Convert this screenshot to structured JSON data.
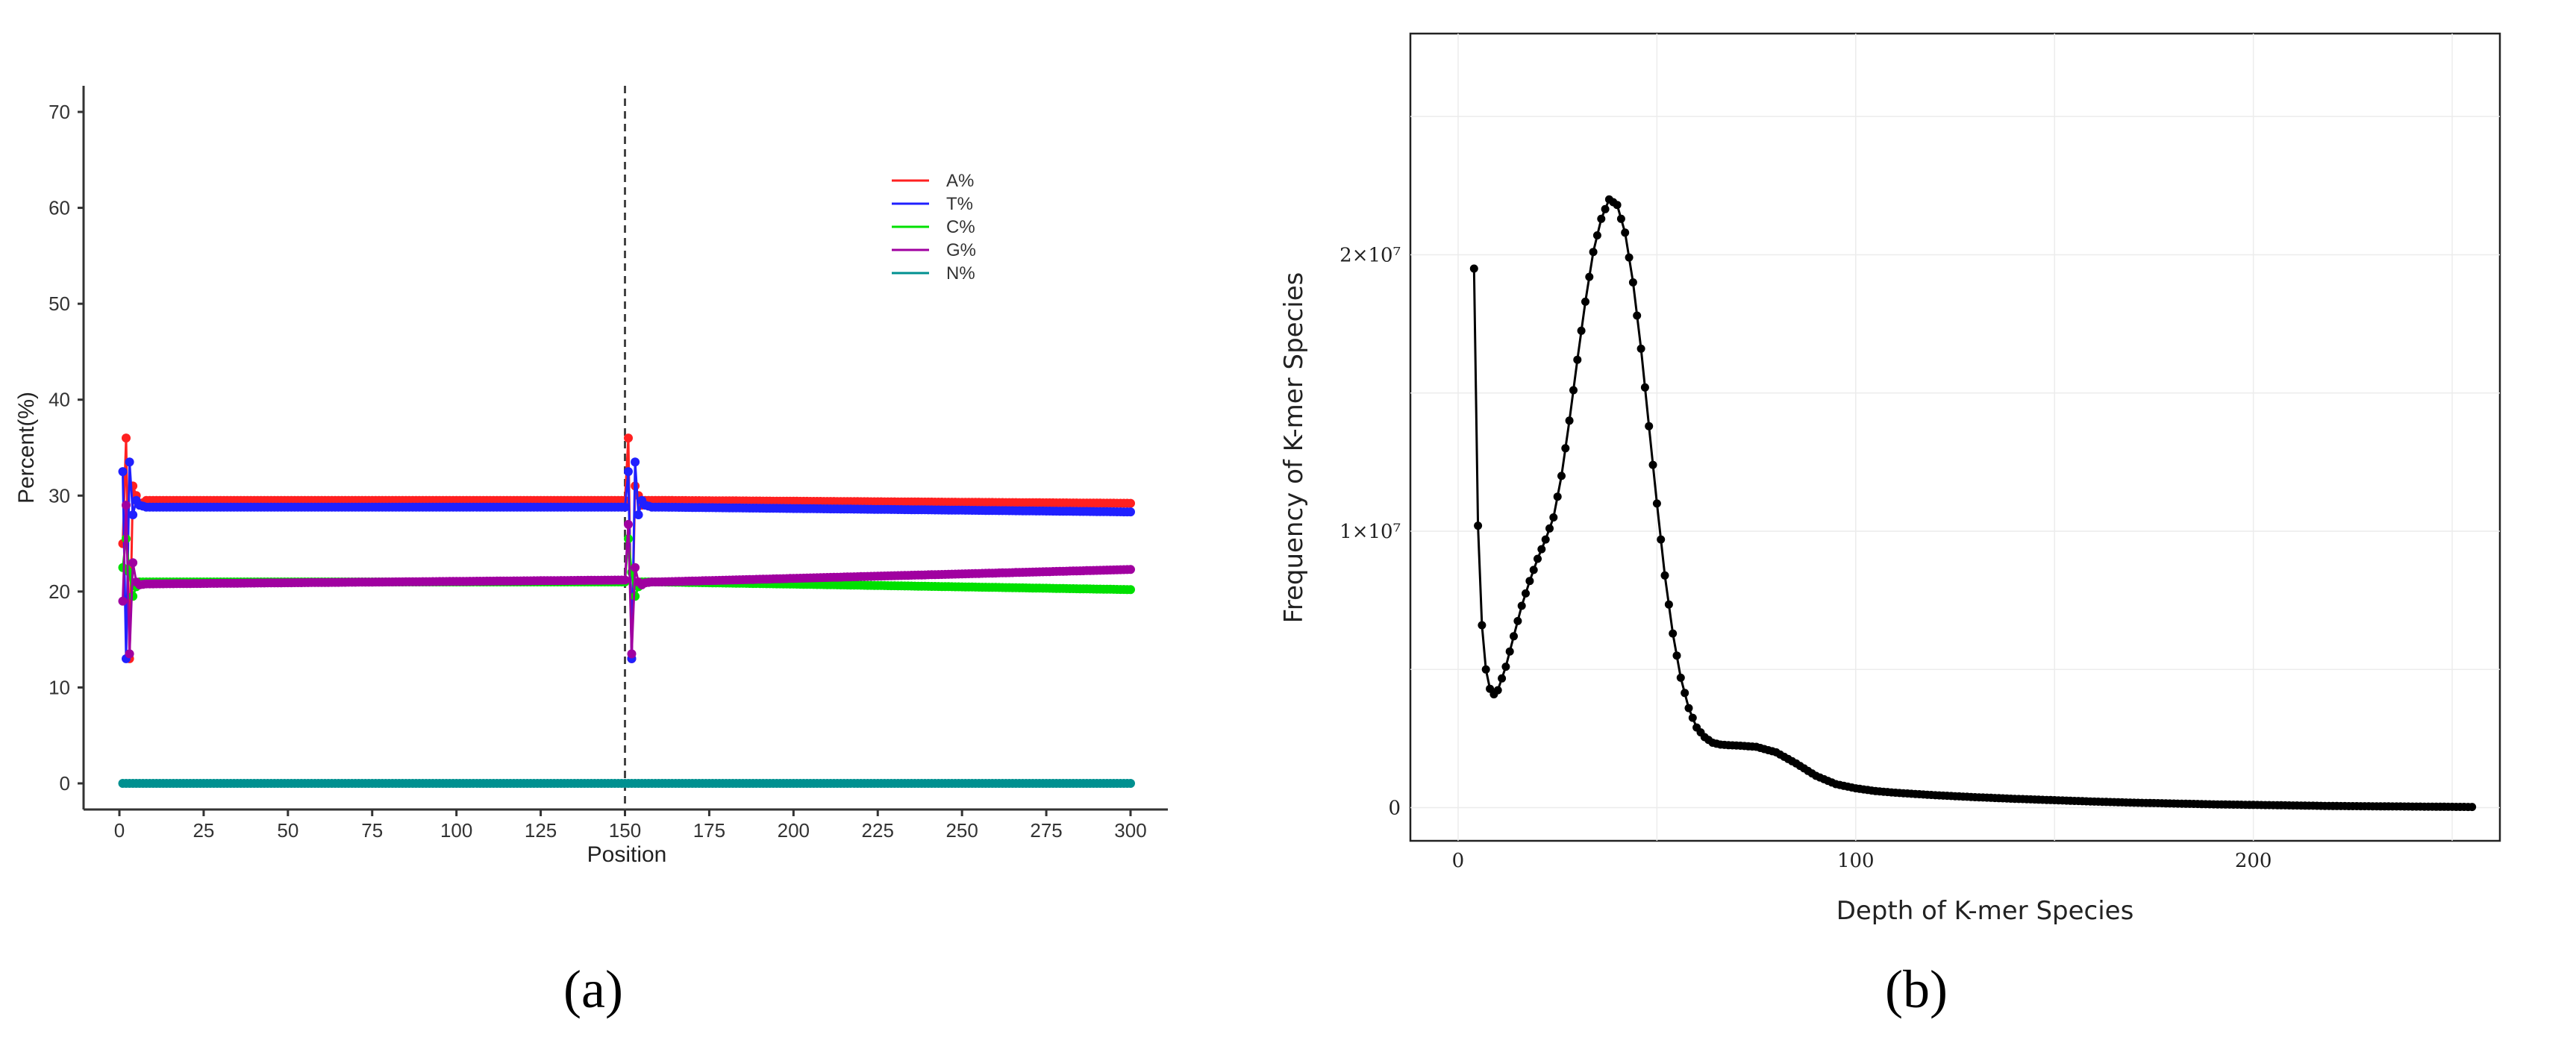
{
  "chart_data": [
    {
      "type": "line",
      "panel_label": "(a)",
      "xlabel": "Position",
      "ylabel": "Percent(%)",
      "xlim": [
        0,
        300
      ],
      "ylim": [
        0,
        70
      ],
      "x_ticks": [
        "0",
        "25",
        "50",
        "75",
        "100",
        "125",
        "150",
        "175",
        "200",
        "225",
        "250",
        "275",
        "300"
      ],
      "y_ticks": [
        "0",
        "10",
        "20",
        "30",
        "40",
        "50",
        "60",
        "70"
      ],
      "vline_x": 150,
      "grid": false,
      "legend_position": "top-right",
      "series": [
        {
          "name": "A%",
          "color": "#ff2020",
          "x": [
            1,
            2,
            3,
            4,
            5,
            6,
            8,
            10,
            150,
            151,
            152,
            153,
            154,
            155,
            156,
            158,
            160,
            300
          ],
          "y": [
            25,
            36,
            13,
            31,
            30,
            29,
            29.5,
            29.5,
            29.5,
            36,
            13,
            31,
            30,
            29,
            29.5,
            29.5,
            29.5,
            29.2
          ]
        },
        {
          "name": "T%",
          "color": "#2020ff",
          "x": [
            1,
            2,
            3,
            4,
            5,
            6,
            8,
            10,
            150,
            151,
            152,
            153,
            154,
            155,
            156,
            158,
            160,
            300
          ],
          "y": [
            32.5,
            13,
            33.5,
            28,
            29.5,
            29,
            28.8,
            28.8,
            28.8,
            32.5,
            13,
            33.5,
            28,
            29.5,
            29,
            28.8,
            28.8,
            28.3
          ]
        },
        {
          "name": "C%",
          "color": "#00e000",
          "x": [
            1,
            2,
            3,
            4,
            5,
            6,
            8,
            10,
            150,
            151,
            152,
            153,
            154,
            155,
            156,
            158,
            160,
            300
          ],
          "y": [
            22.5,
            25.5,
            22,
            19.5,
            20.5,
            21,
            21,
            21,
            21,
            25.5,
            22,
            19.5,
            20.5,
            21,
            21,
            21,
            21,
            20.2
          ]
        },
        {
          "name": "G%",
          "color": "#a000a0",
          "x": [
            1,
            2,
            3,
            4,
            5,
            6,
            8,
            10,
            150,
            151,
            152,
            153,
            154,
            155,
            156,
            158,
            160,
            300
          ],
          "y": [
            19,
            29,
            13.5,
            23,
            21,
            20.7,
            20.8,
            20.8,
            21.2,
            27,
            13.5,
            22.5,
            21,
            20.7,
            20.9,
            21,
            21,
            22.3
          ]
        },
        {
          "name": "N%",
          "color": "#009090",
          "x": [
            1,
            300
          ],
          "y": [
            0,
            0
          ]
        }
      ]
    },
    {
      "type": "line",
      "panel_label": "(b)",
      "xlabel": "Depth of K-mer Species",
      "ylabel": "Frequency of K-mer Species",
      "xlim": [
        -12,
        262
      ],
      "ylim": [
        -1200000,
        28000000
      ],
      "x_ticks": [
        {
          "value": 0,
          "label": "0"
        },
        {
          "value": 100,
          "label": "100"
        },
        {
          "value": 200,
          "label": "200"
        }
      ],
      "y_ticks": [
        {
          "value": 0,
          "label": "0"
        },
        {
          "value": 10000000,
          "label": "1×10⁷"
        },
        {
          "value": 20000000,
          "label": "2×10⁷"
        }
      ],
      "grid": true,
      "color": "#000000",
      "x": [
        4,
        5,
        6,
        7,
        8,
        9,
        10,
        12,
        14,
        16,
        18,
        20,
        22,
        24,
        26,
        28,
        30,
        32,
        34,
        36,
        38,
        40,
        42,
        44,
        46,
        48,
        50,
        52,
        54,
        56,
        58,
        60,
        62,
        64,
        66,
        68,
        70,
        75,
        80,
        85,
        90,
        95,
        100,
        105,
        110,
        120,
        130,
        140,
        150,
        160,
        170,
        180,
        190,
        200,
        210,
        220,
        230,
        240,
        250,
        255
      ],
      "y": [
        19500000,
        10200000,
        6600000,
        5000000,
        4300000,
        4100000,
        4250000,
        5100000,
        6200000,
        7300000,
        8200000,
        9000000,
        9700000,
        10500000,
        12000000,
        14000000,
        16200000,
        18300000,
        20100000,
        21300000,
        22000000,
        21800000,
        20800000,
        19000000,
        16600000,
        13800000,
        11000000,
        8400000,
        6300000,
        4700000,
        3600000,
        2900000,
        2550000,
        2350000,
        2280000,
        2260000,
        2250000,
        2200000,
        2000000,
        1600000,
        1150000,
        850000,
        700000,
        600000,
        540000,
        450000,
        380000,
        320000,
        270000,
        220000,
        180000,
        150000,
        120000,
        100000,
        80000,
        60000,
        50000,
        40000,
        30000,
        25000
      ]
    }
  ]
}
